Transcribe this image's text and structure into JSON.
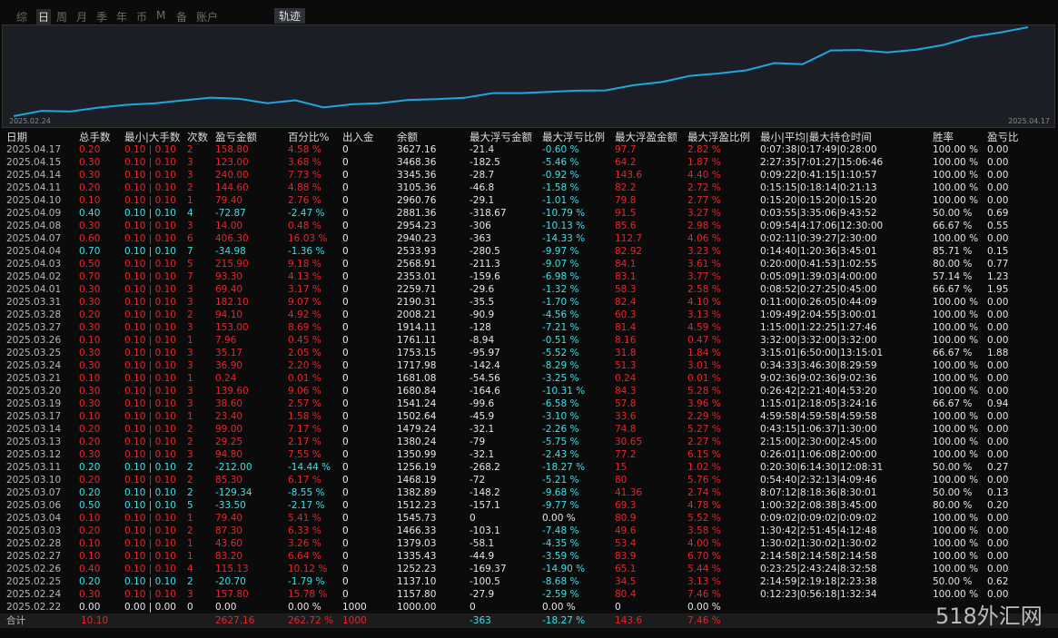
{
  "tabs": [
    "综",
    "日",
    "周",
    "月",
    "季",
    "年",
    "币",
    "M",
    "备",
    "账户"
  ],
  "track_button": "轨迹",
  "chart": {
    "x_start": "2025.02.24",
    "x_end": "2025.04.17",
    "color": "#1ea6df"
  },
  "table": {
    "headers": [
      "日期",
      "总手数",
      "最小|大手数",
      "次数",
      "盈亏金额",
      "百分比%",
      "出入金",
      "余额",
      "最大浮亏金额",
      "最大浮亏比例",
      "最大浮盈金额",
      "最大浮盈比例",
      "最小|平均|最大持仓时间",
      "胜率",
      "盈亏比"
    ],
    "rows": [
      [
        "2025.04.17",
        "0.20",
        "0.10 | 0.10",
        "2",
        "158.80",
        "4.58 %",
        "0",
        "3627.16",
        "-21.4",
        "-0.60 %",
        "97.7",
        "2.82 %",
        "0:07:38|0:17:49|0:28:00",
        "100.00 %",
        "0.00"
      ],
      [
        "2025.04.15",
        "0.30",
        "0.10 | 0.10",
        "3",
        "123.00",
        "3.68 %",
        "0",
        "3468.36",
        "-182.5",
        "-5.46 %",
        "64.2",
        "1.87 %",
        "2:27:35|7:01:27|15:06:46",
        "100.00 %",
        "0.00"
      ],
      [
        "2025.04.14",
        "0.30",
        "0.10 | 0.10",
        "3",
        "240.00",
        "7.73 %",
        "0",
        "3345.36",
        "-28.7",
        "-0.92 %",
        "143.6",
        "4.40 %",
        "0:09:22|0:41:15|1:10:57",
        "100.00 %",
        "0.00"
      ],
      [
        "2025.04.11",
        "0.20",
        "0.10 | 0.10",
        "2",
        "144.60",
        "4.88 %",
        "0",
        "3105.36",
        "-46.8",
        "-1.58 %",
        "82.2",
        "2.72 %",
        "0:15:15|0:18:14|0:21:13",
        "100.00 %",
        "0.00"
      ],
      [
        "2025.04.10",
        "0.10",
        "0.10 | 0.10",
        "1",
        "79.40",
        "2.76 %",
        "0",
        "2960.76",
        "-29.1",
        "-1.01 %",
        "79.8",
        "2.77 %",
        "0:15:20|0:15:20|0:15:20",
        "100.00 %",
        "0.00"
      ],
      [
        "2025.04.09",
        "0.40",
        "0.10 | 0.10",
        "4",
        "-72.87",
        "-2.47 %",
        "0",
        "2881.36",
        "-318.67",
        "-10.79 %",
        "91.5",
        "3.27 %",
        "0:03:55|3:35:06|9:43:52",
        "50.00 %",
        "0.69"
      ],
      [
        "2025.04.08",
        "0.30",
        "0.10 | 0.10",
        "3",
        "14.00",
        "0.48 %",
        "0",
        "2954.23",
        "-306",
        "-10.13 %",
        "85.6",
        "2.98 %",
        "0:09:54|4:17:06|12:30:00",
        "66.67 %",
        "0.55"
      ],
      [
        "2025.04.07",
        "0.60",
        "0.10 | 0.10",
        "6",
        "406.30",
        "16.03 %",
        "0",
        "2940.23",
        "-363",
        "-14.33 %",
        "112.7",
        "4.06 %",
        "0:02:11|0:39:27|2:30:00",
        "100.00 %",
        "0.00"
      ],
      [
        "2025.04.04",
        "0.70",
        "0.10 | 0.10",
        "7",
        "-34.98",
        "-1.36 %",
        "0",
        "2533.93",
        "-280.5",
        "-9.97 %",
        "82.92",
        "3.23 %",
        "0:14:40|1:20:36|3:45:01",
        "85.71 %",
        "0.15"
      ],
      [
        "2025.04.03",
        "0.50",
        "0.10 | 0.10",
        "5",
        "215.90",
        "9.18 %",
        "0",
        "2568.91",
        "-211.3",
        "-9.07 %",
        "84.1",
        "3.61 %",
        "0:20:00|0:41:53|1:02:55",
        "80.00 %",
        "0.77"
      ],
      [
        "2025.04.02",
        "0.70",
        "0.10 | 0.10",
        "7",
        "93.30",
        "4.13 %",
        "0",
        "2353.01",
        "-159.6",
        "-6.98 %",
        "83.1",
        "3.77 %",
        "0:05:09|1:39:03|4:00:00",
        "57.14 %",
        "1.23"
      ],
      [
        "2025.04.01",
        "0.30",
        "0.10 | 0.10",
        "3",
        "69.40",
        "3.17 %",
        "0",
        "2259.71",
        "-29.6",
        "-1.32 %",
        "58.3",
        "2.58 %",
        "0:08:52|0:27:25|0:45:00",
        "66.67 %",
        "1.95"
      ],
      [
        "2025.03.31",
        "0.30",
        "0.10 | 0.10",
        "3",
        "182.10",
        "9.07 %",
        "0",
        "2190.31",
        "-35.5",
        "-1.70 %",
        "82.4",
        "4.10 %",
        "0:11:00|0:26:05|0:44:09",
        "100.00 %",
        "0.00"
      ],
      [
        "2025.03.28",
        "0.20",
        "0.10 | 0.10",
        "2",
        "94.10",
        "4.92 %",
        "0",
        "2008.21",
        "-90.9",
        "-4.56 %",
        "60.3",
        "3.13 %",
        "1:09:49|2:04:55|3:00:01",
        "100.00 %",
        "0.00"
      ],
      [
        "2025.03.27",
        "0.30",
        "0.10 | 0.10",
        "3",
        "153.00",
        "8.69 %",
        "0",
        "1914.11",
        "-128",
        "-7.21 %",
        "81.4",
        "4.59 %",
        "1:15:00|1:22:25|1:27:46",
        "100.00 %",
        "0.00"
      ],
      [
        "2025.03.26",
        "0.10",
        "0.10 | 0.10",
        "1",
        "7.96",
        "0.45 %",
        "0",
        "1761.11",
        "-8.94",
        "-0.51 %",
        "8.16",
        "0.47 %",
        "3:32:00|3:32:00|3:32:00",
        "100.00 %",
        "0.00"
      ],
      [
        "2025.03.25",
        "0.30",
        "0.10 | 0.10",
        "3",
        "35.17",
        "2.05 %",
        "0",
        "1753.15",
        "-95.97",
        "-5.52 %",
        "31.8",
        "1.84 %",
        "3:15:01|6:50:00|13:15:01",
        "66.67 %",
        "1.88"
      ],
      [
        "2025.03.24",
        "0.30",
        "0.10 | 0.10",
        "3",
        "36.90",
        "2.20 %",
        "0",
        "1717.98",
        "-142.4",
        "-8.29 %",
        "51.3",
        "3.01 %",
        "0:34:33|3:46:30|8:29:59",
        "100.00 %",
        "0.00"
      ],
      [
        "2025.03.21",
        "0.10",
        "0.10 | 0.10",
        "1",
        "0.24",
        "0.01 %",
        "0",
        "1681.08",
        "-54.56",
        "-3.25 %",
        "0.24",
        "0.01 %",
        "9:02:36|9:02:36|9:02:36",
        "100.00 %",
        "0.00"
      ],
      [
        "2025.03.20",
        "0.30",
        "0.10 | 0.10",
        "3",
        "139.60",
        "9.06 %",
        "0",
        "1680.84",
        "-164.6",
        "-10.31 %",
        "84.3",
        "5.28 %",
        "0:26:42|2:21:40|4:53:20",
        "100.00 %",
        "0.00"
      ],
      [
        "2025.03.19",
        "0.30",
        "0.10 | 0.10",
        "3",
        "38.60",
        "2.57 %",
        "0",
        "1541.24",
        "-99.6",
        "-6.58 %",
        "57.8",
        "3.96 %",
        "1:15:01|2:18:05|3:24:16",
        "66.67 %",
        "0.94"
      ],
      [
        "2025.03.17",
        "0.10",
        "0.10 | 0.10",
        "1",
        "23.40",
        "1.58 %",
        "0",
        "1502.64",
        "-45.9",
        "-3.10 %",
        "33.6",
        "2.29 %",
        "4:59:58|4:59:58|4:59:58",
        "100.00 %",
        "0.00"
      ],
      [
        "2025.03.14",
        "0.20",
        "0.10 | 0.10",
        "2",
        "99.00",
        "7.17 %",
        "0",
        "1479.24",
        "-32.1",
        "-2.26 %",
        "74.8",
        "5.27 %",
        "0:43:15|1:06:37|1:30:00",
        "100.00 %",
        "0.00"
      ],
      [
        "2025.03.13",
        "0.20",
        "0.10 | 0.10",
        "2",
        "29.25",
        "2.17 %",
        "0",
        "1380.24",
        "-79",
        "-5.75 %",
        "30.65",
        "2.27 %",
        "2:15:00|2:30:00|2:45:00",
        "100.00 %",
        "0.00"
      ],
      [
        "2025.03.12",
        "0.30",
        "0.10 | 0.10",
        "3",
        "94.80",
        "7.55 %",
        "0",
        "1350.99",
        "-32.1",
        "-2.43 %",
        "77.2",
        "6.15 %",
        "0:26:01|1:06:08|2:00:00",
        "100.00 %",
        "0.00"
      ],
      [
        "2025.03.11",
        "0.20",
        "0.10 | 0.10",
        "2",
        "-212.00",
        "-14.44 %",
        "0",
        "1256.19",
        "-268.2",
        "-18.27 %",
        "15",
        "1.02 %",
        "0:20:30|6:14:30|12:08:31",
        "50.00 %",
        "0.27"
      ],
      [
        "2025.03.10",
        "0.20",
        "0.10 | 0.10",
        "2",
        "85.30",
        "6.17 %",
        "0",
        "1468.19",
        "-72",
        "-5.21 %",
        "80",
        "5.76 %",
        "0:54:40|2:32:13|4:09:46",
        "100.00 %",
        "0.00"
      ],
      [
        "2025.03.07",
        "0.20",
        "0.10 | 0.10",
        "2",
        "-129.34",
        "-8.55 %",
        "0",
        "1382.89",
        "-148.2",
        "-9.68 %",
        "41.36",
        "2.74 %",
        "8:07:12|8:18:36|8:30:01",
        "50.00 %",
        "0.13"
      ],
      [
        "2025.03.06",
        "0.50",
        "0.10 | 0.10",
        "5",
        "-33.50",
        "-2.17 %",
        "0",
        "1512.23",
        "-157.1",
        "-9.77 %",
        "69.3",
        "4.78 %",
        "1:00:32|2:08:38|3:45:00",
        "80.00 %",
        "0.20"
      ],
      [
        "2025.03.04",
        "0.10",
        "0.10 | 0.10",
        "1",
        "79.40",
        "5.41 %",
        "0",
        "1545.73",
        "0",
        "0.00 %",
        "80.9",
        "5.52 %",
        "0:09:02|0:09:02|0:09:02",
        "100.00 %",
        "0.00"
      ],
      [
        "2025.03.03",
        "0.20",
        "0.10 | 0.10",
        "2",
        "87.30",
        "6.33 %",
        "0",
        "1466.33",
        "-103.1",
        "-7.48 %",
        "49.6",
        "3.58 %",
        "1:30:42|2:51:45|4:12:48",
        "100.00 %",
        "0.00"
      ],
      [
        "2025.02.28",
        "0.10",
        "0.10 | 0.10",
        "1",
        "43.60",
        "3.26 %",
        "0",
        "1379.03",
        "-58.1",
        "-4.35 %",
        "53.4",
        "4.00 %",
        "1:30:02|1:30:02|1:30:02",
        "100.00 %",
        "0.00"
      ],
      [
        "2025.02.27",
        "0.10",
        "0.10 | 0.10",
        "1",
        "83.20",
        "6.64 %",
        "0",
        "1335.43",
        "-44.9",
        "-3.59 %",
        "83.9",
        "6.70 %",
        "2:14:58|2:14:58|2:14:58",
        "100.00 %",
        "0.00"
      ],
      [
        "2025.02.26",
        "0.40",
        "0.10 | 0.10",
        "4",
        "115.13",
        "10.12 %",
        "0",
        "1252.23",
        "-169.37",
        "-14.90 %",
        "65.1",
        "5.44 %",
        "0:23:25|2:43:24|8:32:58",
        "100.00 %",
        "0.00"
      ],
      [
        "2025.02.25",
        "0.20",
        "0.10 | 0.10",
        "2",
        "-20.70",
        "-1.79 %",
        "0",
        "1137.10",
        "-100.5",
        "-8.68 %",
        "34.5",
        "3.13 %",
        "2:14:59|2:19:18|2:23:38",
        "50.00 %",
        "0.62"
      ],
      [
        "2025.02.24",
        "0.30",
        "0.10 | 0.10",
        "3",
        "157.80",
        "15.78 %",
        "0",
        "1157.80",
        "-27.9",
        "-2.59 %",
        "80.4",
        "7.46 %",
        "0:12:23|0:56:18|1:32:34",
        "100.00 %",
        "0.00"
      ],
      [
        "2025.02.22",
        "0.00",
        "0.00 | 0.00",
        "0",
        "0.00",
        "0.00 %",
        "1000",
        "1000.00",
        "0",
        "0.00 %",
        "0",
        "0.00 %"
      ]
    ],
    "total": {
      "label": "合计",
      "lots": "10.10",
      "pnl": "2627.16",
      "pct": "262.72 %",
      "deposit": "1000",
      "max_float_loss": "-363",
      "max_float_loss_pct": "-18.27 %",
      "max_float_profit": "143.6",
      "max_float_profit_pct": "7.46 %"
    }
  },
  "watermark": "518外汇网"
}
